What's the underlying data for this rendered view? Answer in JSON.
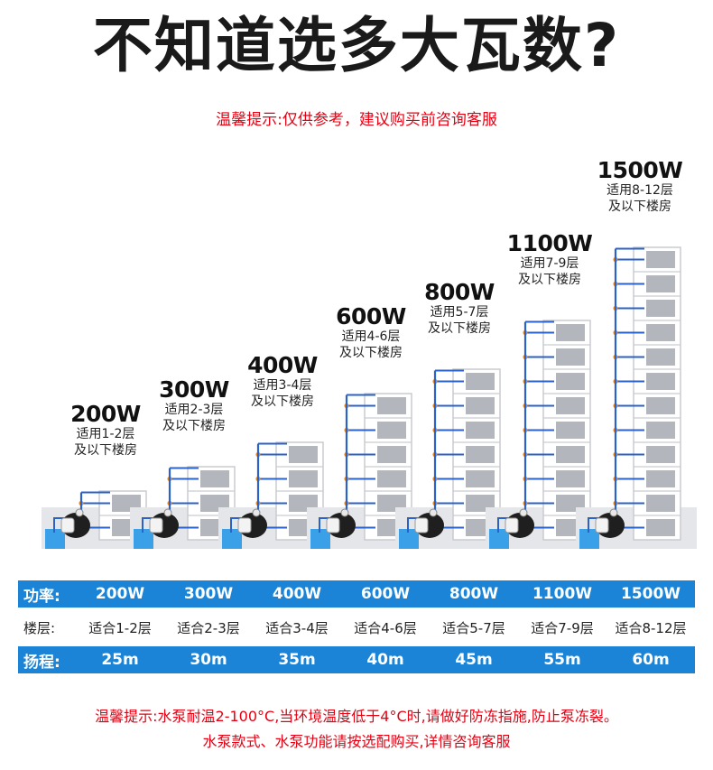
{
  "title": "不知道选多大瓦数?",
  "subtitle": "温馨提示:仅供参考，建议购买前咨询客服",
  "columns": [
    {
      "watt": "200W",
      "floors": 2,
      "line1": "适用1-2层",
      "line2": "及以下楼房"
    },
    {
      "watt": "300W",
      "floors": 3,
      "line1": "适用2-3层",
      "line2": "及以下楼房"
    },
    {
      "watt": "400W",
      "floors": 4,
      "line1": "适用3-4层",
      "line2": "及以下楼房"
    },
    {
      "watt": "600W",
      "floors": 6,
      "line1": "适用4-6层",
      "line2": "及以下楼房"
    },
    {
      "watt": "800W",
      "floors": 7,
      "line1": "适用5-7层",
      "line2": "及以下楼房"
    },
    {
      "watt": "1100W",
      "floors": 9,
      "line1": "适用7-9层",
      "line2": "及以下楼房"
    },
    {
      "watt": "1500W",
      "floors": 12,
      "line1": "适用8-12层",
      "line2": "及以下楼房"
    }
  ],
  "table": {
    "power": {
      "label": "功率:",
      "values": [
        "200W",
        "300W",
        "400W",
        "600W",
        "800W",
        "1100W",
        "1500W"
      ]
    },
    "floor": {
      "label": "楼层:",
      "values": [
        "适合1-2层",
        "适合2-3层",
        "适合3-4层",
        "适合4-6层",
        "适合5-7层",
        "适合7-9层",
        "适合8-12层"
      ]
    },
    "lift": {
      "label": "扬程:",
      "values": [
        "25m",
        "30m",
        "35m",
        "40m",
        "45m",
        "55m",
        "60m"
      ]
    }
  },
  "footer": {
    "line1": "温馨提示:水泵耐温2-100°C,当环境温度低于4°C时,请做好防冻指施,防止泵冻裂。",
    "line2": "水泵款式、水泵功能请按选配购买,详情咨询客服"
  },
  "colors": {
    "accent_blue": "#1c84d6",
    "warning_red": "#e60012",
    "pipe_orange": "#f08a1c",
    "pipe_blue": "#2a62c8"
  }
}
